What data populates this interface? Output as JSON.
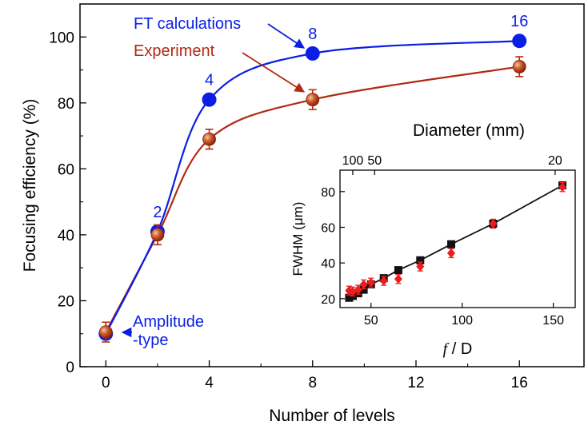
{
  "colors": {
    "ft": "#0a1ee6",
    "experiment": "#b22a12",
    "experiment_fill": "#c8552e",
    "inset_square": "#111111",
    "inset_diamond": "#ee1c1c",
    "axis": "#000000"
  },
  "chart_data": [
    {
      "type": "line",
      "xlabel": "Number of levels",
      "ylabel": "Focusing efficiency (%)",
      "xlim": [
        -1,
        18.5
      ],
      "ylim": [
        0,
        110
      ],
      "xticks": [
        "0",
        "4",
        "8",
        "12",
        "16"
      ],
      "yticks": [
        "0",
        "20",
        "40",
        "60",
        "80",
        "100"
      ],
      "series": [
        {
          "name": "FT calculations",
          "color": "#0a1ee6",
          "marker": "circle",
          "points": [
            {
              "x": 0,
              "y": 10
            },
            {
              "x": 2,
              "y": 41
            },
            {
              "x": 4,
              "y": 81
            },
            {
              "x": 8,
              "y": 95
            },
            {
              "x": 16,
              "y": 98.8
            }
          ]
        },
        {
          "name": "Experiment",
          "color": "#b22a12",
          "marker": "sphere",
          "points": [
            {
              "x": 0,
              "y": 10.5,
              "err": 3
            },
            {
              "x": 2,
              "y": 40,
              "err": 3
            },
            {
              "x": 4,
              "y": 69,
              "err": 3
            },
            {
              "x": 8,
              "y": 81,
              "err": 3
            },
            {
              "x": 16,
              "y": 91,
              "err": 3
            }
          ]
        }
      ],
      "point_labels": [
        {
          "text": "2",
          "x": 2
        },
        {
          "text": "4",
          "x": 4
        },
        {
          "text": "8",
          "x": 8
        },
        {
          "text": "16",
          "x": 16
        }
      ],
      "annotations": [
        "FT calculations",
        "Experiment",
        "Amplitude",
        "-type"
      ]
    },
    {
      "type": "scatter",
      "inset": true,
      "xlabel_italic": "f",
      "xlabel_rest": " / D",
      "ylabel": "FWHM (μm)",
      "top_xlabel": "Diameter (mm)",
      "xlim": [
        33,
        162
      ],
      "ylim": [
        15,
        92
      ],
      "xticks": [
        "50",
        "100",
        "150"
      ],
      "yticks": [
        "20",
        "40",
        "60",
        "80"
      ],
      "top_xticks": [
        {
          "label": "100",
          "f_over_d": 40
        },
        {
          "label": "50",
          "f_over_d": 52
        },
        {
          "label": "20",
          "f_over_d": 151
        }
      ],
      "series": [
        {
          "name": "",
          "marker": "square",
          "color": "#111111",
          "points": [
            {
              "x": 38,
              "y": 20.5
            },
            {
              "x": 40,
              "y": 21.5
            },
            {
              "x": 43,
              "y": 23
            },
            {
              "x": 46,
              "y": 25
            },
            {
              "x": 50,
              "y": 28
            },
            {
              "x": 57,
              "y": 31.5
            },
            {
              "x": 65,
              "y": 36
            },
            {
              "x": 77,
              "y": 41.5
            },
            {
              "x": 94,
              "y": 50.5
            },
            {
              "x": 117,
              "y": 62
            },
            {
              "x": 155,
              "y": 83.5
            }
          ]
        },
        {
          "name": "",
          "marker": "diamond",
          "color": "#ee1c1c",
          "points": [
            {
              "x": 38,
              "y": 24.5,
              "err": 2.5
            },
            {
              "x": 40,
              "y": 24,
              "err": 2.5
            },
            {
              "x": 43,
              "y": 25,
              "err": 2.5
            },
            {
              "x": 46,
              "y": 28,
              "err": 2.5
            },
            {
              "x": 50,
              "y": 29,
              "err": 2.5
            },
            {
              "x": 57,
              "y": 30,
              "err": 2.5
            },
            {
              "x": 65,
              "y": 31,
              "err": 2.5
            },
            {
              "x": 77,
              "y": 38,
              "err": 2.5
            },
            {
              "x": 94,
              "y": 45.5,
              "err": 2.5
            },
            {
              "x": 117,
              "y": 62,
              "err": 2.5
            },
            {
              "x": 155,
              "y": 82.5,
              "err": 2.5
            }
          ]
        }
      ]
    }
  ]
}
